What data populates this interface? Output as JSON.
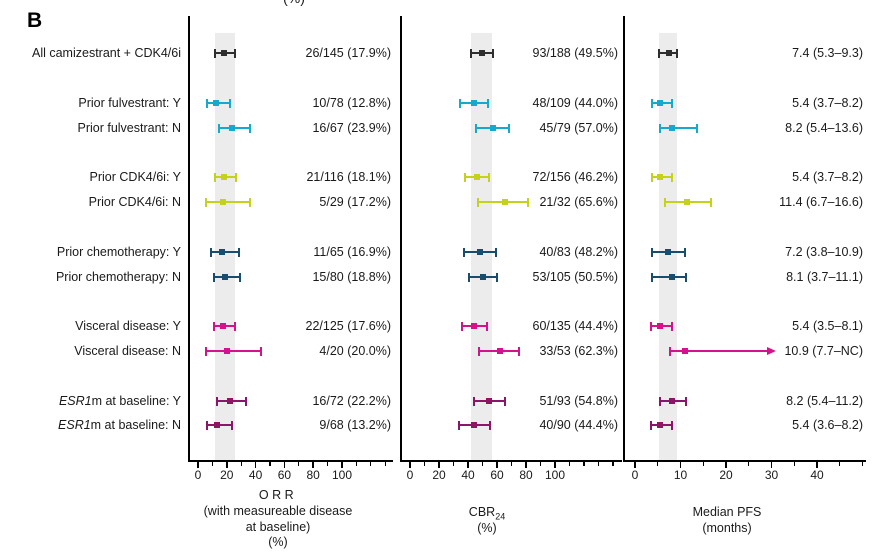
{
  "figure_label": "B",
  "top_cropped_text": "(%)",
  "colors": {
    "black": "#2e2e30",
    "cyan": "#15a9ce",
    "yellow": "#c5d21b",
    "navy": "#174d6f",
    "magenta": "#d5128c",
    "purple": "#8b1566",
    "band": "#ececec",
    "axis": "#000000",
    "text": "#1a1a1a"
  },
  "rows": [
    {
      "label": "All camizestrant + CDK4/6i",
      "color": "black"
    },
    {
      "label": "Prior fulvestrant: Y",
      "color": "cyan"
    },
    {
      "label": "Prior fulvestrant: N",
      "color": "cyan"
    },
    {
      "label": "Prior CDK4/6i: Y",
      "color": "yellow"
    },
    {
      "label": "Prior CDK4/6i: N",
      "color": "yellow"
    },
    {
      "label": "Prior chemotherapy: Y",
      "color": "navy"
    },
    {
      "label": "Prior chemotherapy: N",
      "color": "navy"
    },
    {
      "label": "Visceral disease: Y",
      "color": "magenta"
    },
    {
      "label": "Visceral disease: N",
      "color": "magenta"
    },
    {
      "label_italic": "ESR1",
      "label": "m at baseline: Y",
      "color": "purple"
    },
    {
      "label_italic": "ESR1",
      "label": "m at baseline: N",
      "color": "purple"
    }
  ],
  "chart_data": [
    {
      "type": "scatter",
      "subtype": "forest",
      "title": "ORR (with measureable disease at baseline) (%)",
      "axis_title_lines": [
        {
          "text": "ORR",
          "spaced": true
        },
        {
          "text": "(with measureable disease"
        },
        {
          "text": "at baseline)"
        },
        {
          "text": "(%)"
        }
      ],
      "categories": [
        "All camizestrant + CDK4/6i",
        "Prior fulvestrant: Y",
        "Prior fulvestrant: N",
        "Prior CDK4/6i: Y",
        "Prior CDK4/6i: N",
        "Prior chemotherapy: Y",
        "Prior chemotherapy: N",
        "Visceral disease: Y",
        "Visceral disease: N",
        "ESR1m at baseline: Y",
        "ESR1m at baseline: N"
      ],
      "xlim": [
        0,
        135
      ],
      "xticks": [
        0,
        20,
        40,
        60,
        80,
        100
      ],
      "minor_step": 10,
      "ref_band": [
        12.0,
        25.8
      ],
      "points": [
        {
          "estimate": 17.9,
          "lo": 12.0,
          "hi": 25.8,
          "text": "26/145 (17.9%)"
        },
        {
          "estimate": 12.8,
          "lo": 6.3,
          "hi": 22.3,
          "text": "10/78 (12.8%)"
        },
        {
          "estimate": 23.9,
          "lo": 14.3,
          "hi": 35.9,
          "text": "16/67 (23.9%)"
        },
        {
          "estimate": 18.1,
          "lo": 11.6,
          "hi": 26.3,
          "text": "21/116 (18.1%)"
        },
        {
          "estimate": 17.2,
          "lo": 5.8,
          "hi": 35.8,
          "text": "5/29 (17.2%)"
        },
        {
          "estimate": 16.9,
          "lo": 8.8,
          "hi": 28.3,
          "text": "11/65 (16.9%)"
        },
        {
          "estimate": 18.8,
          "lo": 10.9,
          "hi": 29.0,
          "text": "15/80 (18.8%)"
        },
        {
          "estimate": 17.6,
          "lo": 11.4,
          "hi": 25.4,
          "text": "22/125 (17.6%)"
        },
        {
          "estimate": 20.0,
          "lo": 5.7,
          "hi": 43.7,
          "text": "4/20 (20.0%)"
        },
        {
          "estimate": 22.2,
          "lo": 13.3,
          "hi": 33.6,
          "text": "16/72 (22.2%)"
        },
        {
          "estimate": 13.2,
          "lo": 6.2,
          "hi": 23.6,
          "text": "9/68 (13.2%)"
        }
      ]
    },
    {
      "type": "scatter",
      "subtype": "forest",
      "title": "CBR24 (%)",
      "axis_title_lines": [
        {
          "text": "CBR",
          "sub": "24"
        },
        {
          "text": "(%)"
        }
      ],
      "categories": [
        "All camizestrant + CDK4/6i",
        "Prior fulvestrant: Y",
        "Prior fulvestrant: N",
        "Prior CDK4/6i: Y",
        "Prior CDK4/6i: N",
        "Prior chemotherapy: Y",
        "Prior chemotherapy: N",
        "Visceral disease: Y",
        "Visceral disease: N",
        "ESR1m at baseline: Y",
        "ESR1m at baseline: N"
      ],
      "xlim": [
        0,
        145
      ],
      "xticks": [
        0,
        20,
        40,
        60,
        80,
        100
      ],
      "minor_step": 10,
      "ref_band": [
        42.1,
        56.9
      ],
      "points": [
        {
          "estimate": 49.5,
          "lo": 42.1,
          "hi": 56.9,
          "text": "93/188 (49.5%)"
        },
        {
          "estimate": 44.0,
          "lo": 34.5,
          "hi": 53.9,
          "text": "48/109 (44.0%)"
        },
        {
          "estimate": 57.0,
          "lo": 45.3,
          "hi": 68.1,
          "text": "45/79 (57.0%)"
        },
        {
          "estimate": 46.2,
          "lo": 38.1,
          "hi": 54.3,
          "text": "72/156 (46.2%)"
        },
        {
          "estimate": 65.6,
          "lo": 46.8,
          "hi": 81.4,
          "text": "21/32 (65.6%)"
        },
        {
          "estimate": 48.2,
          "lo": 37.1,
          "hi": 59.4,
          "text": "40/83 (48.2%)"
        },
        {
          "estimate": 50.5,
          "lo": 40.6,
          "hi": 60.3,
          "text": "53/105 (50.5%)"
        },
        {
          "estimate": 44.4,
          "lo": 35.9,
          "hi": 53.2,
          "text": "60/135 (44.4%)"
        },
        {
          "estimate": 62.3,
          "lo": 47.9,
          "hi": 75.2,
          "text": "33/53 (62.3%)"
        },
        {
          "estimate": 54.8,
          "lo": 44.2,
          "hi": 65.2,
          "text": "51/93 (54.8%)"
        },
        {
          "estimate": 44.4,
          "lo": 34.0,
          "hi": 55.3,
          "text": "40/90 (44.4%)"
        }
      ]
    },
    {
      "type": "scatter",
      "subtype": "forest",
      "title": "Median PFS (months)",
      "axis_title_lines": [
        {
          "text": "Median PFS"
        },
        {
          "text": "(months)"
        }
      ],
      "categories": [
        "All camizestrant + CDK4/6i",
        "Prior fulvestrant: Y",
        "Prior fulvestrant: N",
        "Prior CDK4/6i: Y",
        "Prior CDK4/6i: N",
        "Prior chemotherapy: Y",
        "Prior chemotherapy: N",
        "Visceral disease: Y",
        "Visceral disease: N",
        "ESR1m at baseline: Y",
        "ESR1m at baseline: N"
      ],
      "xlim": [
        0,
        51
      ],
      "xticks": [
        0,
        10,
        20,
        30,
        40
      ],
      "minor_step": 5,
      "ref_band": [
        5.3,
        9.3
      ],
      "points": [
        {
          "estimate": 7.4,
          "lo": 5.3,
          "hi": 9.3,
          "text": "7.4 (5.3–9.3)"
        },
        {
          "estimate": 5.4,
          "lo": 3.7,
          "hi": 8.2,
          "text": "5.4 (3.7–8.2)"
        },
        {
          "estimate": 8.2,
          "lo": 5.4,
          "hi": 13.6,
          "text": "8.2 (5.4–13.6)"
        },
        {
          "estimate": 5.4,
          "lo": 3.7,
          "hi": 8.2,
          "text": "5.4 (3.7–8.2)"
        },
        {
          "estimate": 11.4,
          "lo": 6.7,
          "hi": 16.6,
          "text": "11.4 (6.7–16.6)"
        },
        {
          "estimate": 7.2,
          "lo": 3.8,
          "hi": 10.9,
          "text": "7.2 (3.8–10.9)"
        },
        {
          "estimate": 8.1,
          "lo": 3.7,
          "hi": 11.1,
          "text": "8.1 (3.7–11.1)"
        },
        {
          "estimate": 5.4,
          "lo": 3.5,
          "hi": 8.1,
          "text": "5.4 (3.5–8.1)"
        },
        {
          "estimate": 10.9,
          "lo": 7.7,
          "hi": null,
          "arrow_to": 29,
          "text": "10.9 (7.7–NC)"
        },
        {
          "estimate": 8.2,
          "lo": 5.4,
          "hi": 11.2,
          "text": "8.2 (5.4–11.2)"
        },
        {
          "estimate": 5.4,
          "lo": 3.6,
          "hi": 8.2,
          "text": "5.4 (3.6–8.2)"
        }
      ]
    }
  ]
}
